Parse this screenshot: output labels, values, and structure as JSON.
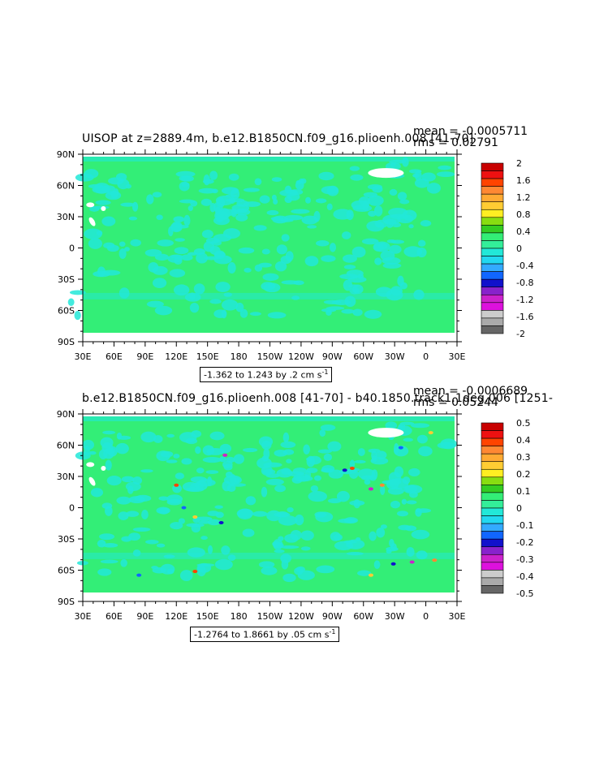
{
  "colors": {
    "ocean_zero": "#33ee77",
    "ocean_neg": "#22e8d8",
    "land": "#ffffff"
  },
  "lat_labels": [
    "90N",
    "60N",
    "30N",
    "0",
    "30S",
    "60S",
    "90S"
  ],
  "lon_labels": [
    "30E",
    "60E",
    "90E",
    "120E",
    "150E",
    "180",
    "150W",
    "120W",
    "90W",
    "60W",
    "30W",
    "0",
    "30E"
  ],
  "panels": [
    {
      "title": "UISOP at z=2889.4m, b.e12.B1850CN.f09_g16.plioenh.008 [41-70]",
      "mean": "mean = -0.0005711",
      "rms": "rms = 0.02791",
      "contour_info_prefix": "-1.362 to 1.243 by .2 cm s",
      "contour_info_exp": "-1",
      "colorbar_labels": [
        "2",
        "1.6",
        "1.2",
        "0.8",
        "0.4",
        "0",
        "-0.4",
        "-0.8",
        "-1.2",
        "-1.6",
        "-2"
      ],
      "colorbar_colors": [
        "#c80000",
        "#ee1111",
        "#ff4400",
        "#ff8833",
        "#ffaa33",
        "#ffcc33",
        "#ffee22",
        "#88dd11",
        "#33cc22",
        "#33ee77",
        "#33ee99",
        "#22e8d8",
        "#22d8f0",
        "#33aaff",
        "#1166ff",
        "#1111cc",
        "#8822cc",
        "#cc22cc",
        "#dd11dd",
        "#cccccc",
        "#aaaaaa",
        "#666666"
      ]
    },
    {
      "title": "b.e12.B1850CN.f09_g16.plioenh.008 [41-70] - b40.1850.track1.1deg.006 [1251-",
      "mean": "mean = -0.0006689",
      "rms": "rms = 0.05244",
      "contour_info_prefix": "-1.2764 to 1.8661 by .05 cm s",
      "contour_info_exp": "-1",
      "colorbar_labels": [
        "0.5",
        "0.4",
        "0.3",
        "0.2",
        "0.1",
        "0",
        "-0.1",
        "-0.2",
        "-0.3",
        "-0.4",
        "-0.5"
      ],
      "colorbar_colors": [
        "#c80000",
        "#ee1111",
        "#ff4400",
        "#ff8833",
        "#ffaa33",
        "#ffcc33",
        "#ffee22",
        "#88dd11",
        "#33cc22",
        "#33ee77",
        "#33ee99",
        "#22e8d8",
        "#22d8f0",
        "#33aaff",
        "#1166ff",
        "#1111cc",
        "#8822cc",
        "#cc22cc",
        "#dd11dd",
        "#cccccc",
        "#aaaaaa",
        "#666666"
      ]
    }
  ]
}
